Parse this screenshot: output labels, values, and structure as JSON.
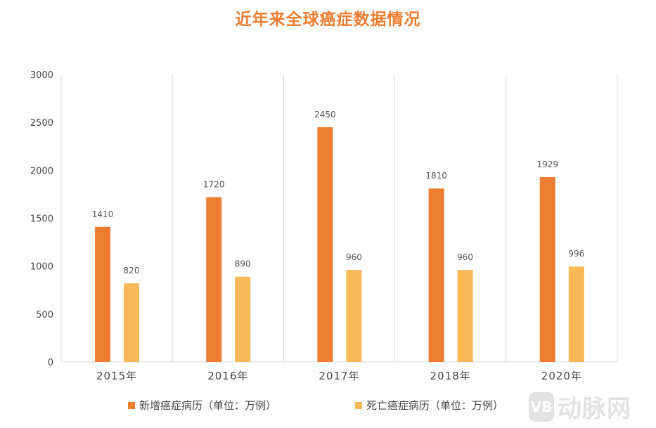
{
  "chart_data": {
    "type": "bar",
    "title": "近年来全球癌症数据情况",
    "categories": [
      "2015年",
      "2016年",
      "2017年",
      "2018年",
      "2020年"
    ],
    "series": [
      {
        "name": "新增癌症病历（单位：万例）",
        "values": [
          1410,
          1720,
          2450,
          1810,
          1929
        ],
        "color": "#ED7D31"
      },
      {
        "name": "死亡癌症病历（单位：万例）",
        "values": [
          820,
          890,
          960,
          960,
          996
        ],
        "color": "#F8B956"
      }
    ],
    "ylim": [
      0,
      3000
    ],
    "yticks": [
      0,
      500,
      1000,
      1500,
      2000,
      2500,
      3000
    ],
    "xlabel": "",
    "ylabel": "",
    "grid": "vertical category separators",
    "legend": "bottom",
    "data_labels": true
  },
  "watermark": {
    "logo": "VB",
    "text": "动脉网"
  }
}
